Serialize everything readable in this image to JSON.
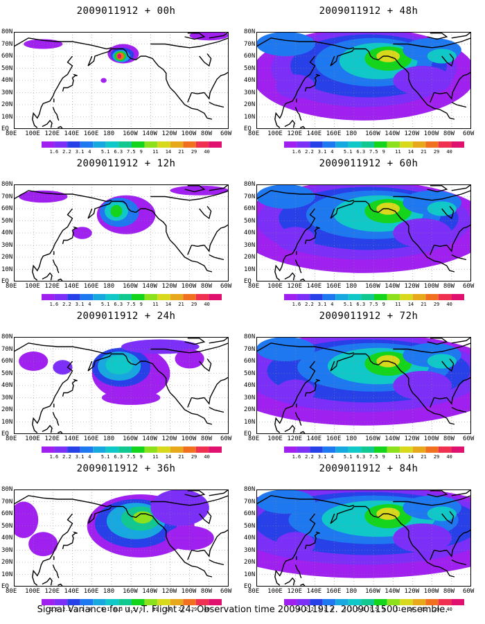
{
  "chart_data": {
    "type": "heatmap",
    "caption": "Signal Variance for u,v,T. Flight 24. Observation time 2009011912. 2009011500 ensemble.",
    "y_tick_labels": [
      "80N",
      "70N",
      "60N",
      "50N",
      "40N",
      "30N",
      "20N",
      "10N",
      "EQ"
    ],
    "x_tick_labels": [
      "80E",
      "100E",
      "120E",
      "140E",
      "160E",
      "180",
      "160W",
      "140W",
      "120W",
      "100W",
      "80W",
      "60W"
    ],
    "colorbar_levels": [
      "1.6",
      "2.2",
      "3.1",
      "4",
      "5.1",
      "6.3",
      "7.5",
      "9",
      "11",
      "14",
      "21",
      "29",
      "40"
    ],
    "colorbar_colors": [
      "#a020f0",
      "#7b2ff7",
      "#2840e8",
      "#1e78f0",
      "#18a8e0",
      "#10c8c8",
      "#10c890",
      "#14d41c",
      "#8ce01c",
      "#d8d81c",
      "#e8a81c",
      "#f07020",
      "#f03050",
      "#e0106e"
    ],
    "panels": [
      {
        "title": "2009011912 + 00h",
        "level": 0
      },
      {
        "title": "2009011912 + 12h",
        "level": 1
      },
      {
        "title": "2009011912 + 24h",
        "level": 2
      },
      {
        "title": "2009011912 + 36h",
        "level": 3
      },
      {
        "title": "2009011912 + 48h",
        "level": 4
      },
      {
        "title": "2009011912 + 60h",
        "level": 5
      },
      {
        "title": "2009011912 + 72h",
        "level": 6
      },
      {
        "title": "2009011912 + 84h",
        "level": 7
      }
    ]
  }
}
